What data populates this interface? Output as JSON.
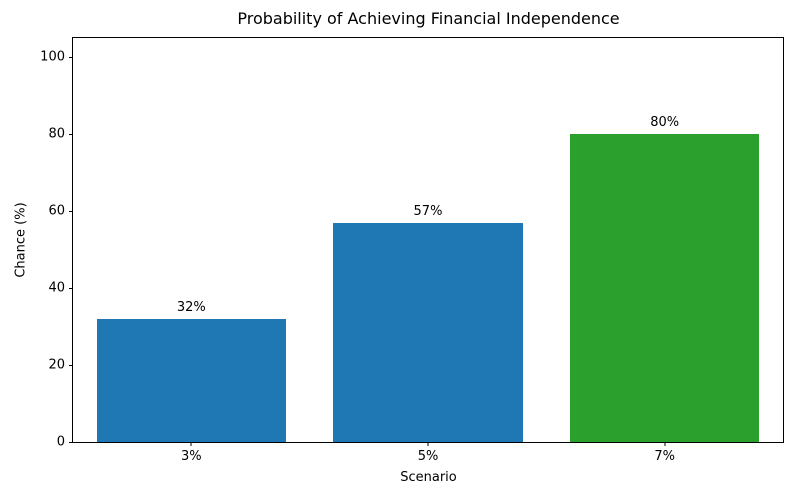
{
  "chart_data": {
    "type": "bar",
    "title": "Probability of Achieving Financial Independence",
    "xlabel": "Scenario",
    "ylabel": "Chance (%)",
    "categories": [
      "3%",
      "5%",
      "7%"
    ],
    "values": [
      32,
      57,
      80
    ],
    "bar_value_labels": [
      "32%",
      "57%",
      "80%"
    ],
    "bar_colors": [
      "#1f77b4",
      "#1f77b4",
      "#2ca02c"
    ],
    "yticks": [
      0,
      20,
      40,
      60,
      80,
      100
    ],
    "ylim": [
      0,
      105
    ],
    "bar_width_fraction": 0.8,
    "grid": false,
    "legend_position": "none",
    "background_color": "#ffffff",
    "spine_color": "#000000"
  }
}
